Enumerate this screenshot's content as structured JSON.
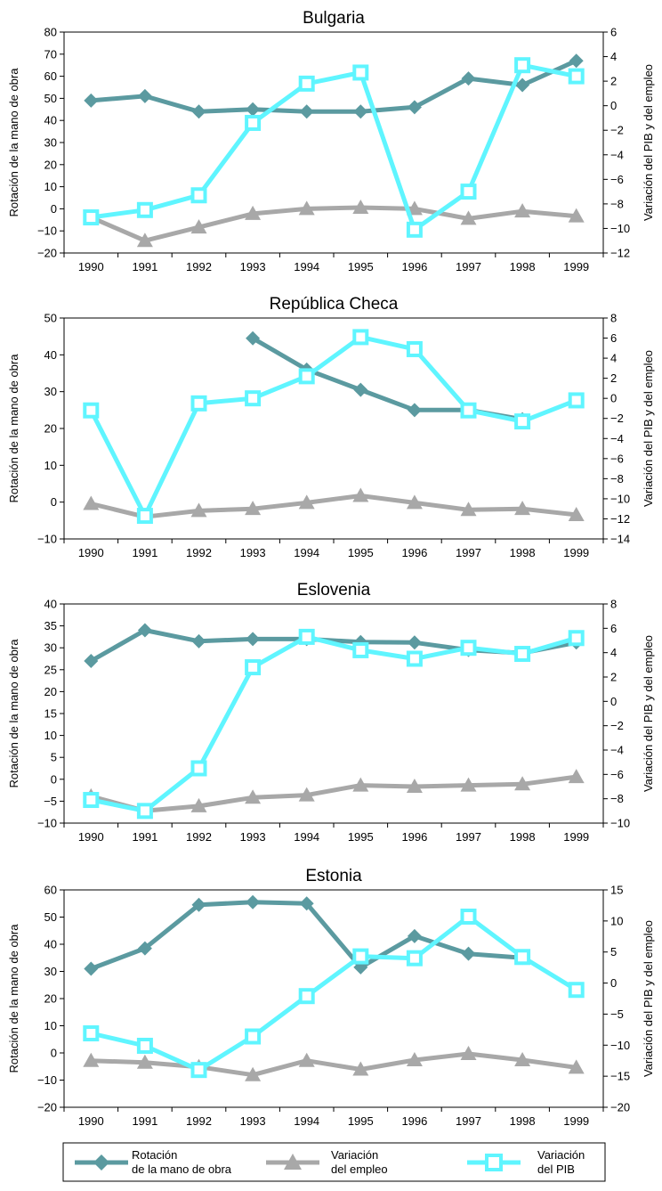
{
  "colors": {
    "turnover": "#5b9aa0",
    "employment": "#a8a8a8",
    "gdp": "#5ff5ff",
    "axis": "#000000"
  },
  "legend": {
    "turnover_line1": "Rotación",
    "turnover_line2": "de la mano de obra",
    "employment_line1": "Variación",
    "employment_line2": "del empleo",
    "gdp_line1": "Variación",
    "gdp_line2": "del PIB"
  },
  "chart_data": [
    {
      "type": "line",
      "title": "Bulgaria",
      "ylabel": "Rotación de la mano de obra",
      "y2label": "Variación del PIB y del empleo",
      "x": [
        "1990",
        "1991",
        "1992",
        "1993",
        "1994",
        "1995",
        "1996",
        "1997",
        "1998",
        "1999"
      ],
      "ylim": [
        -20,
        80
      ],
      "yticks": [
        -20,
        -10,
        0,
        10,
        20,
        30,
        40,
        50,
        60,
        70,
        80
      ],
      "y2lim": [
        -12,
        6
      ],
      "y2ticks": [
        -12,
        -10,
        -8,
        -6,
        -4,
        -2,
        0,
        2,
        4,
        6
      ],
      "series": [
        {
          "key": "turnover",
          "axis": "left",
          "values": [
            49,
            51,
            44,
            45,
            44,
            44,
            46,
            59,
            56,
            67
          ]
        },
        {
          "key": "employment",
          "axis": "right",
          "values": [
            -9.1,
            -11,
            -9.9,
            -8.8,
            -8.4,
            -8.3,
            -8.4,
            -9.2,
            -8.6,
            -9
          ]
        },
        {
          "key": "gdp",
          "axis": "right",
          "values": [
            -9.1,
            -8.5,
            -7.3,
            -1.4,
            1.8,
            2.7,
            -10.1,
            -7.0,
            3.3,
            2.4
          ]
        }
      ]
    },
    {
      "type": "line",
      "title": "República Checa",
      "ylabel": "Rotación de la mano de obra",
      "y2label": "Variación del PIB y del empleo",
      "x": [
        "1990",
        "1991",
        "1992",
        "1993",
        "1994",
        "1995",
        "1996",
        "1997",
        "1998",
        "1999"
      ],
      "ylim": [
        -10,
        50
      ],
      "yticks": [
        -10,
        0,
        10,
        20,
        30,
        40,
        50
      ],
      "y2lim": [
        -14,
        8
      ],
      "y2ticks": [
        -14,
        -12,
        -10,
        -8,
        -6,
        -4,
        -2,
        0,
        2,
        4,
        6,
        8
      ],
      "series": [
        {
          "key": "turnover",
          "axis": "left",
          "values": [
            null,
            null,
            null,
            44.5,
            36,
            30.5,
            25,
            25,
            22.5,
            null
          ]
        },
        {
          "key": "employment",
          "axis": "right",
          "values": [
            -10.5,
            -11.8,
            -11.2,
            -11,
            -10.4,
            -9.7,
            -10.4,
            -11.1,
            -11,
            -11.6
          ]
        },
        {
          "key": "gdp",
          "axis": "right",
          "values": [
            -1.2,
            -11.7,
            -0.5,
            0,
            2.2,
            6.1,
            4.9,
            -1.2,
            -2.3,
            -0.2
          ]
        }
      ]
    },
    {
      "type": "line",
      "title": "Eslovenia",
      "ylabel": "Rotación de la mano de obra",
      "y2label": "Variación del PIB y del empleo",
      "x": [
        "1990",
        "1991",
        "1992",
        "1993",
        "1994",
        "1995",
        "1996",
        "1997",
        "1998",
        "1999"
      ],
      "ylim": [
        -10,
        40
      ],
      "yticks": [
        -10,
        -5,
        0,
        5,
        10,
        15,
        20,
        25,
        30,
        35,
        40
      ],
      "y2lim": [
        -10,
        8
      ],
      "y2ticks": [
        -10,
        -8,
        -6,
        -4,
        -2,
        0,
        2,
        4,
        6,
        8
      ],
      "series": [
        {
          "key": "turnover",
          "axis": "left",
          "values": [
            27,
            34,
            31.5,
            32,
            32,
            31.3,
            31.2,
            29.5,
            28.8,
            31.2
          ]
        },
        {
          "key": "employment",
          "axis": "right",
          "values": [
            -7.8,
            -9,
            -8.6,
            -7.9,
            -7.7,
            -6.9,
            -7.0,
            -6.9,
            -6.8,
            -6.2
          ]
        },
        {
          "key": "gdp",
          "axis": "right",
          "values": [
            -8.1,
            -9.0,
            -5.5,
            2.8,
            5.3,
            4.2,
            3.5,
            4.4,
            3.9,
            5.2
          ]
        }
      ]
    },
    {
      "type": "line",
      "title": "Estonia",
      "ylabel": "Rotación de la mano de obra",
      "y2label": "Variación del PIB y del empleo",
      "x": [
        "1990",
        "1991",
        "1992",
        "1993",
        "1994",
        "1995",
        "1996",
        "1997",
        "1998",
        "1999"
      ],
      "ylim": [
        -20,
        60
      ],
      "yticks": [
        -20,
        -10,
        0,
        10,
        20,
        30,
        40,
        50,
        60
      ],
      "y2lim": [
        -20,
        15
      ],
      "y2ticks": [
        -20,
        -15,
        -10,
        -5,
        0,
        5,
        10,
        15
      ],
      "series": [
        {
          "key": "turnover",
          "axis": "left",
          "values": [
            31,
            38.5,
            54.5,
            55.5,
            55,
            31.5,
            43,
            36.5,
            35,
            null
          ]
        },
        {
          "key": "employment",
          "axis": "right",
          "values": [
            -12.5,
            -12.8,
            -13.5,
            -14.8,
            -12.5,
            -13.9,
            -12.4,
            -11.4,
            -12.4,
            -13.6
          ]
        },
        {
          "key": "gdp",
          "axis": "right",
          "values": [
            -8.1,
            -10.1,
            -14.0,
            -8.6,
            -2.1,
            4.3,
            4.0,
            10.7,
            4.2,
            -1.1
          ]
        }
      ]
    }
  ]
}
